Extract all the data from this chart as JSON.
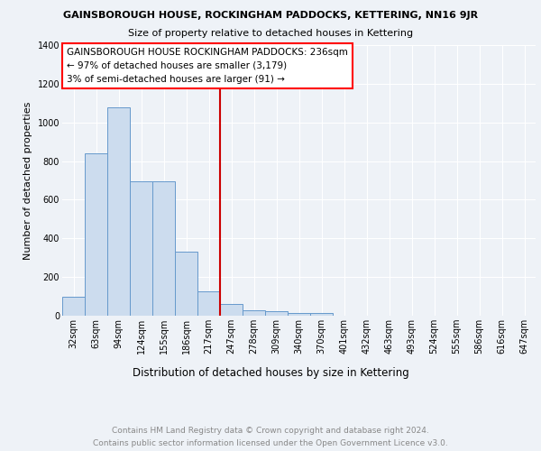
{
  "title": "GAINSBOROUGH HOUSE, ROCKINGHAM PADDOCKS, KETTERING, NN16 9JR",
  "subtitle": "Size of property relative to detached houses in Kettering",
  "xlabel": "Distribution of detached houses by size in Kettering",
  "ylabel": "Number of detached properties",
  "bar_values": [
    97,
    840,
    1080,
    695,
    695,
    330,
    125,
    62,
    30,
    22,
    15,
    12,
    0,
    0,
    0,
    0,
    0,
    0,
    0,
    0,
    0
  ],
  "categories": [
    "32sqm",
    "63sqm",
    "94sqm",
    "124sqm",
    "155sqm",
    "186sqm",
    "217sqm",
    "247sqm",
    "278sqm",
    "309sqm",
    "340sqm",
    "370sqm",
    "401sqm",
    "432sqm",
    "463sqm",
    "493sqm",
    "524sqm",
    "555sqm",
    "586sqm",
    "616sqm",
    "647sqm"
  ],
  "bar_color": "#ccdcee",
  "bar_edge_color": "#6699cc",
  "vline_x_idx": 7,
  "vline_color": "#cc0000",
  "ylim": [
    0,
    1400
  ],
  "yticks": [
    0,
    200,
    400,
    600,
    800,
    1000,
    1200,
    1400
  ],
  "annotation_title": "GAINSBOROUGH HOUSE ROCKINGHAM PADDOCKS: 236sqm",
  "annotation_line1": "← 97% of detached houses are smaller (3,179)",
  "annotation_line2": "3% of semi-detached houses are larger (91) →",
  "footer1": "Contains HM Land Registry data © Crown copyright and database right 2024.",
  "footer2": "Contains public sector information licensed under the Open Government Licence v3.0.",
  "bg_color": "#eef2f7",
  "grid_color": "#ffffff",
  "title_fontsize": 8.0,
  "subtitle_fontsize": 8.0,
  "ylabel_fontsize": 8.0,
  "xlabel_fontsize": 8.5,
  "tick_fontsize": 7.0,
  "annotation_fontsize": 7.5,
  "footer_fontsize": 6.5
}
